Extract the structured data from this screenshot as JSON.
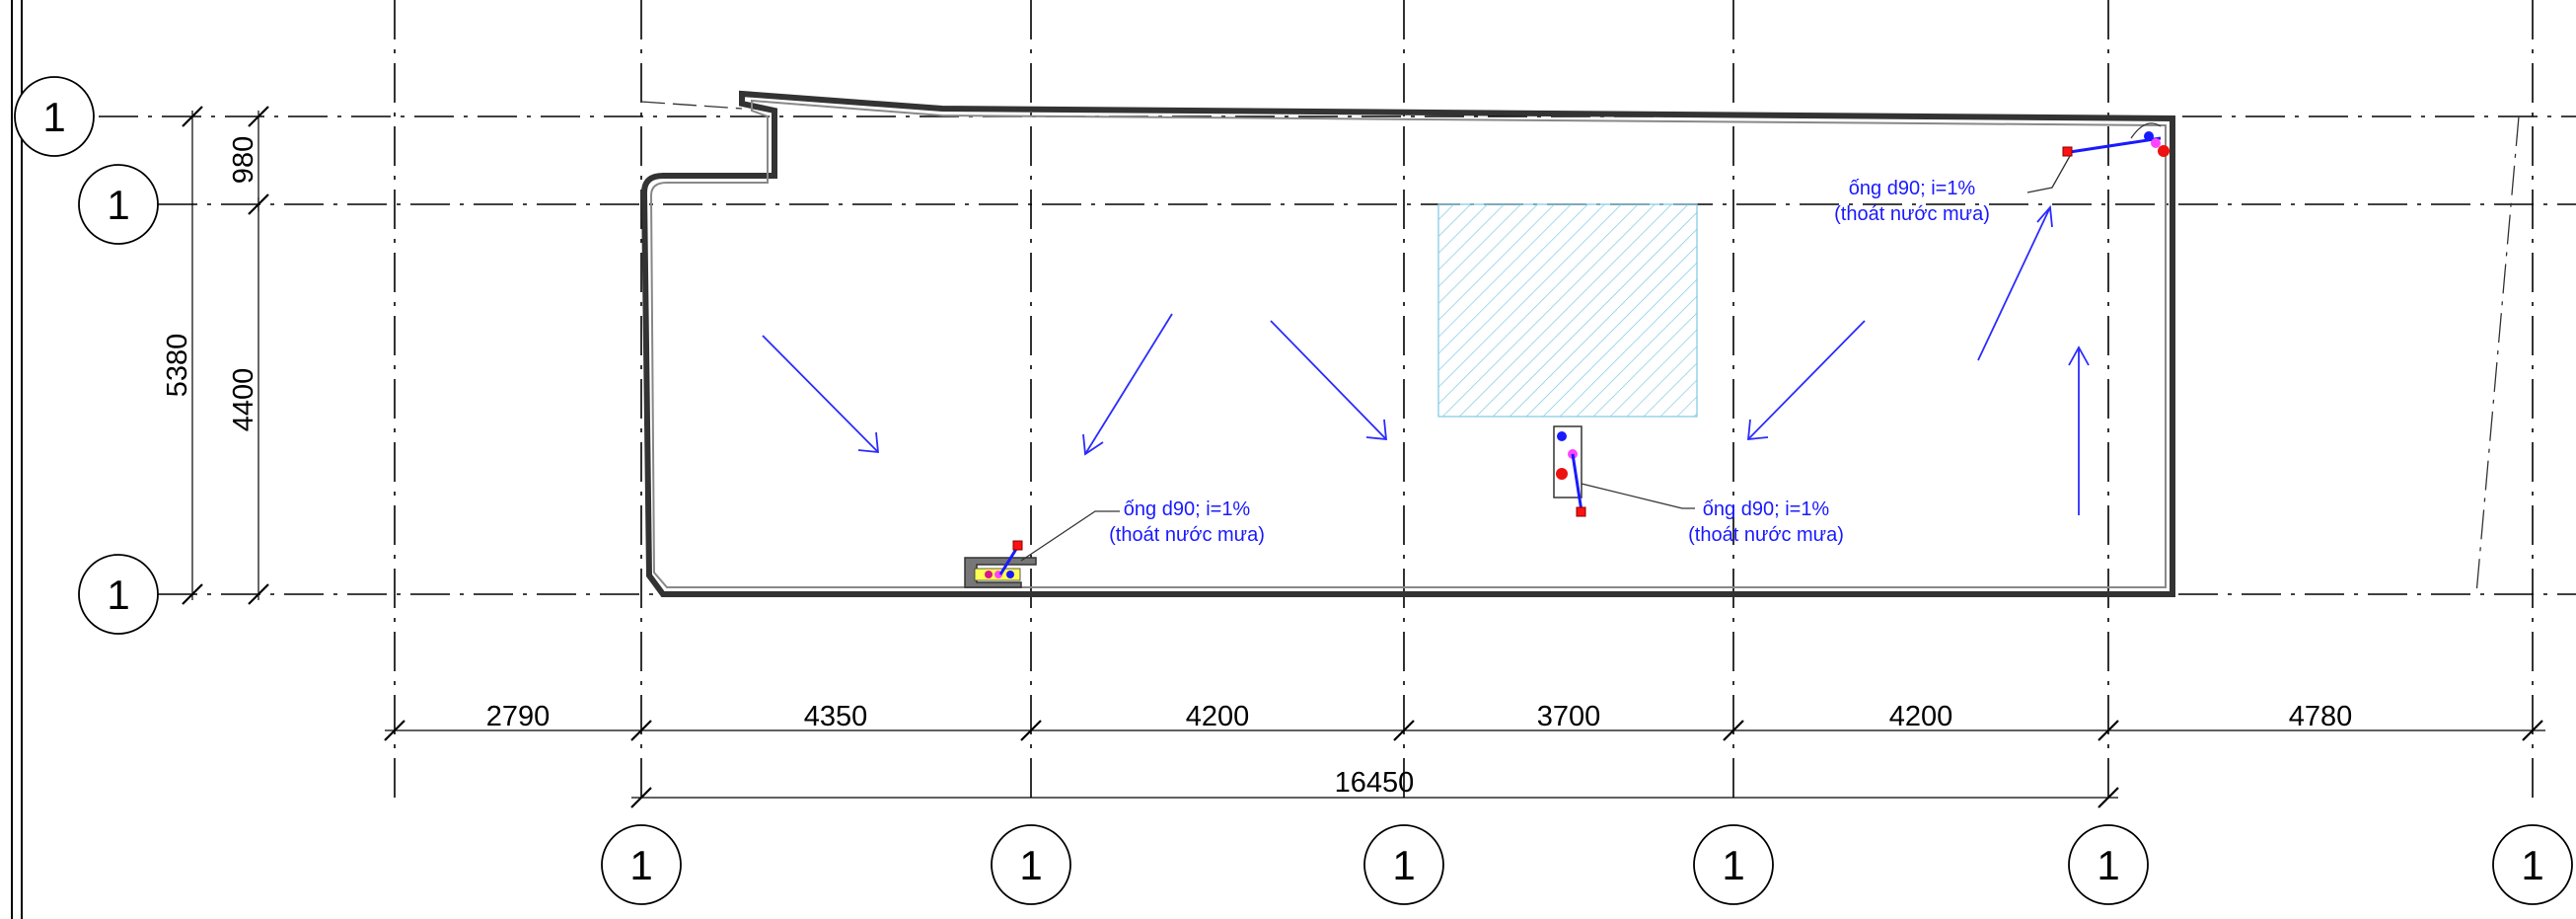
{
  "dimensions": {
    "bottom_segments": [
      "2790",
      "4350",
      "4200",
      "3700",
      "4200",
      "4780"
    ],
    "bottom_total": "16450",
    "left_outer": "5380",
    "left_top": "980",
    "left_main": "4400"
  },
  "grid_bubbles": {
    "vertical_axes": [
      "1",
      "1",
      "1",
      "1",
      "1",
      "1"
    ],
    "horizontal_axes": [
      "1",
      "1",
      "1"
    ]
  },
  "notes": [
    {
      "line1": "ống d90; i=1%",
      "line2": "(thoát nước mưa)"
    },
    {
      "line1": "ống d90; i=1%",
      "line2": "(thoát nước mưa)"
    },
    {
      "line1": "ống d90; i=1%",
      "line2": "(thoát nước mưa)"
    }
  ],
  "colors": {
    "arrows": "#2b2bff",
    "notes": "#1a1aff",
    "hatch": "#7ec8e3"
  }
}
